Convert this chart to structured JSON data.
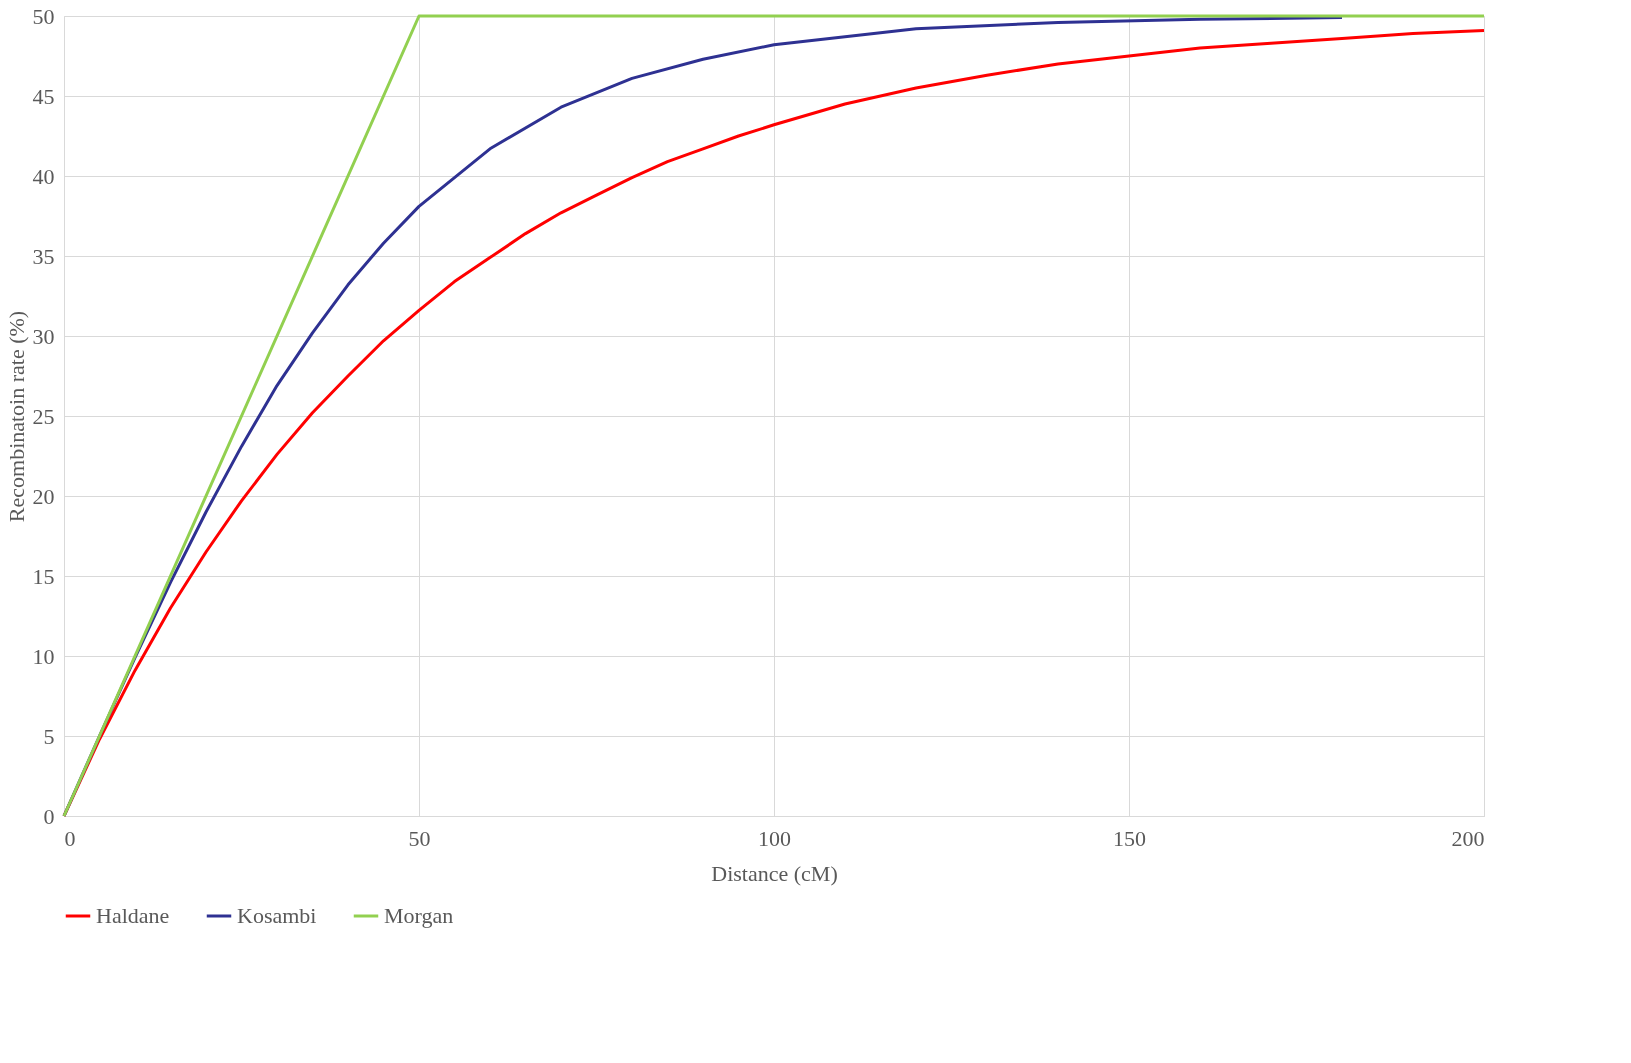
{
  "chart_data": {
    "type": "line",
    "xlabel": "Distance (cM)",
    "ylabel": "Recombinatoin rate (%)",
    "xlim": [
      0,
      200
    ],
    "xticks": [
      0,
      50,
      100,
      150,
      200
    ],
    "ylim": [
      0,
      50
    ],
    "yticks": [
      0,
      5,
      10,
      15,
      20,
      25,
      30,
      35,
      40,
      45,
      50
    ],
    "grid": true,
    "legend": "bottom",
    "line_style": "solid",
    "marker": "none",
    "series": [
      {
        "name": "Haldane",
        "color": "#ff0000",
        "x": [
          0,
          5,
          10,
          15,
          20,
          25,
          30,
          35,
          40,
          45,
          50,
          55,
          60,
          65,
          70,
          75,
          80,
          85,
          90,
          95,
          100,
          110,
          120,
          130,
          140,
          150,
          160,
          170,
          180,
          190,
          200
        ],
        "values": [
          0,
          4.8,
          9.1,
          13.0,
          16.5,
          19.7,
          22.6,
          25.2,
          27.5,
          29.7,
          31.6,
          33.4,
          34.9,
          36.4,
          37.7,
          38.8,
          39.9,
          40.9,
          41.7,
          42.5,
          43.2,
          44.5,
          45.5,
          46.3,
          47.0,
          47.5,
          48.0,
          48.3,
          48.6,
          48.9,
          49.1
        ]
      },
      {
        "name": "Kosambi",
        "color": "#2e3192",
        "x": [
          0,
          5,
          10,
          15,
          20,
          25,
          30,
          35,
          40,
          45,
          50,
          60,
          70,
          80,
          90,
          100,
          120,
          140,
          160,
          180
        ],
        "values": [
          0,
          5.0,
          9.9,
          14.6,
          19.0,
          23.1,
          26.9,
          30.2,
          33.2,
          35.8,
          38.1,
          41.7,
          44.3,
          46.1,
          47.3,
          48.2,
          49.2,
          49.6,
          49.8,
          49.9
        ]
      },
      {
        "name": "Morgan",
        "color": "#92d050",
        "x": [
          0,
          50,
          200
        ],
        "values": [
          0,
          50,
          50
        ]
      }
    ]
  }
}
